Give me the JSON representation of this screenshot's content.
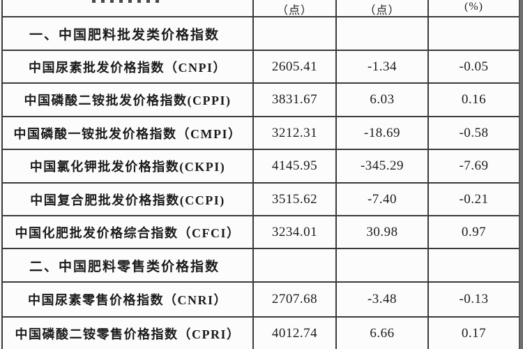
{
  "page": {
    "background_color": "#f6f6f6",
    "line_color": "#3a3a3a",
    "text_color": "#1b1b1b"
  },
  "table": {
    "header": {
      "col2": "（点）",
      "col3": "（点）",
      "col4": "(%)"
    },
    "rows": [
      {
        "type": "section",
        "label": "一、中国肥料批发类价格指数",
        "v1": "",
        "v2": "",
        "v3": ""
      },
      {
        "type": "data",
        "label": "中国尿素批发价格指数（CNPI）",
        "v1": "2605.41",
        "v2": "-1.34",
        "v3": "-0.05"
      },
      {
        "type": "data",
        "label": "中国磷酸二铵批发价格指数(CPPI)",
        "v1": "3831.67",
        "v2": "6.03",
        "v3": "0.16"
      },
      {
        "type": "data",
        "label": "中国磷酸一铵批发价格指数（CMPI）",
        "v1": "3212.31",
        "v2": "-18.69",
        "v3": "-0.58"
      },
      {
        "type": "data",
        "label": "中国氯化钾批发价格指数(CKPI)",
        "v1": "4145.95",
        "v2": "-345.29",
        "v3": "-7.69"
      },
      {
        "type": "data",
        "label": "中国复合肥批发价格指数(CCPI)",
        "v1": "3515.62",
        "v2": "-7.40",
        "v3": "-0.21"
      },
      {
        "type": "data",
        "label": "中国化肥批发价格综合指数（CFCI）",
        "v1": "3234.01",
        "v2": "30.98",
        "v3": "0.97"
      },
      {
        "type": "section",
        "label": "二、中国肥料零售类价格指数",
        "v1": "",
        "v2": "",
        "v3": ""
      },
      {
        "type": "data",
        "label": "中国尿素零售价格指数（CNRI）",
        "v1": "2707.68",
        "v2": "-3.48",
        "v3": "-0.13"
      },
      {
        "type": "data",
        "label": "中国磷酸二铵零售价格指数（CPRI）",
        "v1": "4012.74",
        "v2": "6.66",
        "v3": "0.17"
      }
    ]
  },
  "chart_data": {
    "type": "table",
    "columns": [
      "指数名称",
      "（点）",
      "（点）",
      "(%)"
    ],
    "sections": [
      {
        "title": "一、中国肥料批发类价格指数",
        "rows": [
          [
            "中国尿素批发价格指数（CNPI）",
            2605.41,
            -1.34,
            -0.05
          ],
          [
            "中国磷酸二铵批发价格指数(CPPI)",
            3831.67,
            6.03,
            0.16
          ],
          [
            "中国磷酸一铵批发价格指数（CMPI）",
            3212.31,
            -18.69,
            -0.58
          ],
          [
            "中国氯化钾批发价格指数(CKPI)",
            4145.95,
            -345.29,
            -7.69
          ],
          [
            "中国复合肥批发价格指数(CCPI)",
            3515.62,
            -7.4,
            -0.21
          ],
          [
            "中国化肥批发价格综合指数（CFCI）",
            3234.01,
            30.98,
            0.97
          ]
        ]
      },
      {
        "title": "二、中国肥料零售类价格指数",
        "rows": [
          [
            "中国尿素零售价格指数（CNRI）",
            2707.68,
            -3.48,
            -0.13
          ],
          [
            "中国磷酸二铵零售价格指数（CPRI）",
            4012.74,
            6.66,
            0.17
          ]
        ]
      }
    ]
  }
}
